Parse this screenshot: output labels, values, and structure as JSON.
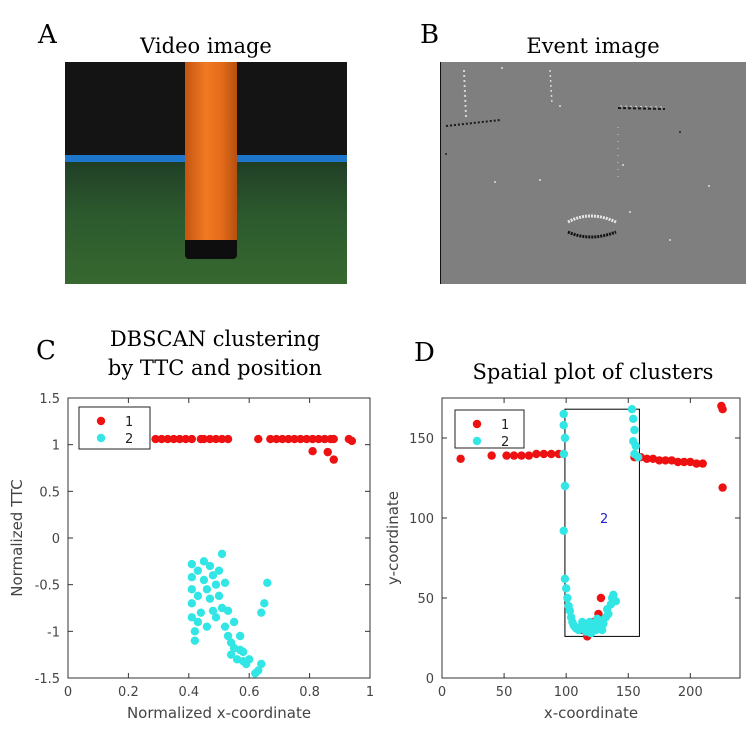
{
  "panels": {
    "a": {
      "letter": "A",
      "title": "Video image"
    },
    "b": {
      "letter": "B",
      "title": "Event image"
    },
    "c": {
      "letter": "C",
      "title_line1": "DBSCAN clustering",
      "title_line2": "by TTC and position"
    },
    "d": {
      "letter": "D",
      "title": "Spatial plot of clusters"
    }
  },
  "colors": {
    "cluster1": "#ee1111",
    "cluster2": "#33e6e6",
    "annotation": "#2222cc"
  },
  "chart_data": [
    {
      "type": "scatter",
      "panel": "C",
      "title": "DBSCAN clustering by TTC and position",
      "xlabel": "Normalized x-coordinate",
      "ylabel": "Normalized TTC",
      "xlim": [
        0,
        1
      ],
      "ylim": [
        -1.5,
        1.5
      ],
      "xticks": [
        "0",
        "0.2",
        "0.4",
        "0.6",
        "0.8",
        "1"
      ],
      "yticks": [
        "-1.5",
        "-1",
        "-0.5",
        "0",
        "0.5",
        "1",
        "1.5"
      ],
      "legend": "top-left",
      "series": [
        {
          "name": "1",
          "color": "#ee1111",
          "points": [
            [
              0.29,
              1.06
            ],
            [
              0.31,
              1.06
            ],
            [
              0.33,
              1.06
            ],
            [
              0.35,
              1.06
            ],
            [
              0.37,
              1.06
            ],
            [
              0.39,
              1.06
            ],
            [
              0.41,
              1.06
            ],
            [
              0.44,
              1.06
            ],
            [
              0.45,
              1.06
            ],
            [
              0.47,
              1.06
            ],
            [
              0.49,
              1.06
            ],
            [
              0.51,
              1.06
            ],
            [
              0.53,
              1.06
            ],
            [
              0.63,
              1.06
            ],
            [
              0.67,
              1.06
            ],
            [
              0.69,
              1.06
            ],
            [
              0.71,
              1.06
            ],
            [
              0.73,
              1.06
            ],
            [
              0.75,
              1.06
            ],
            [
              0.77,
              1.06
            ],
            [
              0.79,
              1.06
            ],
            [
              0.81,
              1.06
            ],
            [
              0.83,
              1.06
            ],
            [
              0.85,
              1.06
            ],
            [
              0.87,
              1.06
            ],
            [
              0.88,
              1.06
            ],
            [
              0.93,
              1.06
            ],
            [
              0.94,
              1.04
            ],
            [
              0.81,
              0.93
            ],
            [
              0.86,
              0.92
            ],
            [
              0.88,
              0.84
            ]
          ]
        },
        {
          "name": "2",
          "color": "#33e6e6",
          "points": [
            [
              0.41,
              -0.28
            ],
            [
              0.41,
              -0.42
            ],
            [
              0.41,
              -0.55
            ],
            [
              0.41,
              -0.7
            ],
            [
              0.41,
              -0.85
            ],
            [
              0.42,
              -1.0
            ],
            [
              0.42,
              -1.1
            ],
            [
              0.43,
              -0.35
            ],
            [
              0.43,
              -0.62
            ],
            [
              0.43,
              -0.9
            ],
            [
              0.44,
              -0.8
            ],
            [
              0.45,
              -0.25
            ],
            [
              0.45,
              -0.45
            ],
            [
              0.46,
              -0.55
            ],
            [
              0.46,
              -0.95
            ],
            [
              0.47,
              -0.65
            ],
            [
              0.47,
              -0.3
            ],
            [
              0.48,
              -0.78
            ],
            [
              0.48,
              -0.4
            ],
            [
              0.49,
              -0.5
            ],
            [
              0.49,
              -0.85
            ],
            [
              0.5,
              -0.35
            ],
            [
              0.5,
              -0.62
            ],
            [
              0.51,
              -0.17
            ],
            [
              0.51,
              -0.75
            ],
            [
              0.52,
              -0.48
            ],
            [
              0.52,
              -0.95
            ],
            [
              0.53,
              -0.78
            ],
            [
              0.53,
              -1.05
            ],
            [
              0.54,
              -1.12
            ],
            [
              0.54,
              -1.25
            ],
            [
              0.55,
              -1.18
            ],
            [
              0.55,
              -0.9
            ],
            [
              0.56,
              -1.3
            ],
            [
              0.57,
              -1.2
            ],
            [
              0.57,
              -1.05
            ],
            [
              0.58,
              -1.32
            ],
            [
              0.58,
              -1.22
            ],
            [
              0.59,
              -1.35
            ],
            [
              0.6,
              -1.3
            ],
            [
              0.62,
              -1.45
            ],
            [
              0.63,
              -1.42
            ],
            [
              0.64,
              -1.35
            ],
            [
              0.64,
              -0.8
            ],
            [
              0.65,
              -0.7
            ],
            [
              0.66,
              -0.48
            ]
          ]
        }
      ]
    },
    {
      "type": "scatter",
      "panel": "D",
      "title": "Spatial plot of clusters",
      "xlabel": "x-coordinate",
      "ylabel": "y-coordinate",
      "xlim": [
        0,
        240
      ],
      "ylim": [
        0,
        175
      ],
      "xticks": [
        "0",
        "50",
        "100",
        "150",
        "200"
      ],
      "yticks": [
        "0",
        "50",
        "100",
        "150"
      ],
      "legend": "top-left",
      "annotation": "2",
      "box": {
        "x0": 99,
        "x1": 159,
        "y0": 26,
        "y1": 168
      },
      "series": [
        {
          "name": "1",
          "color": "#ee1111",
          "points": [
            [
              15,
              137
            ],
            [
              40,
              139
            ],
            [
              52,
              139
            ],
            [
              58,
              139
            ],
            [
              64,
              139
            ],
            [
              70,
              139
            ],
            [
              76,
              140
            ],
            [
              82,
              140
            ],
            [
              88,
              140
            ],
            [
              94,
              140
            ],
            [
              98,
              140
            ],
            [
              155,
              138
            ],
            [
              160,
              138
            ],
            [
              165,
              137
            ],
            [
              170,
              137
            ],
            [
              175,
              136
            ],
            [
              180,
              136
            ],
            [
              185,
              136
            ],
            [
              190,
              135
            ],
            [
              195,
              135
            ],
            [
              200,
              135
            ],
            [
              205,
              134
            ],
            [
              210,
              134
            ],
            [
              225,
              170
            ],
            [
              226,
              168
            ],
            [
              226,
              119
            ],
            [
              113,
              30
            ],
            [
              117,
              26
            ],
            [
              122,
              35
            ],
            [
              126,
              40
            ],
            [
              128,
              50
            ]
          ]
        },
        {
          "name": "2",
          "color": "#33e6e6",
          "points": [
            [
              98,
              165
            ],
            [
              98,
              158
            ],
            [
              99,
              150
            ],
            [
              98,
              140
            ],
            [
              99,
              120
            ],
            [
              98,
              92
            ],
            [
              99,
              62
            ],
            [
              100,
              56
            ],
            [
              101,
              50
            ],
            [
              102,
              45
            ],
            [
              103,
              42
            ],
            [
              104,
              38
            ],
            [
              105,
              35
            ],
            [
              106,
              33
            ],
            [
              107,
              32
            ],
            [
              108,
              31
            ],
            [
              110,
              30
            ],
            [
              112,
              32
            ],
            [
              113,
              35
            ],
            [
              114,
              33
            ],
            [
              116,
              29
            ],
            [
              118,
              31
            ],
            [
              119,
              35
            ],
            [
              120,
              28
            ],
            [
              122,
              33
            ],
            [
              124,
              30
            ],
            [
              125,
              37
            ],
            [
              126,
              33
            ],
            [
              127,
              36
            ],
            [
              129,
              30
            ],
            [
              130,
              34
            ],
            [
              132,
              38
            ],
            [
              133,
              43
            ],
            [
              134,
              40
            ],
            [
              136,
              46
            ],
            [
              137,
              50
            ],
            [
              138,
              52
            ],
            [
              140,
              48
            ],
            [
              153,
              168
            ],
            [
              154,
              162
            ],
            [
              155,
              155
            ],
            [
              154,
              148
            ],
            [
              155,
              140
            ],
            [
              158,
              138
            ],
            [
              156,
              145
            ]
          ]
        }
      ]
    }
  ]
}
